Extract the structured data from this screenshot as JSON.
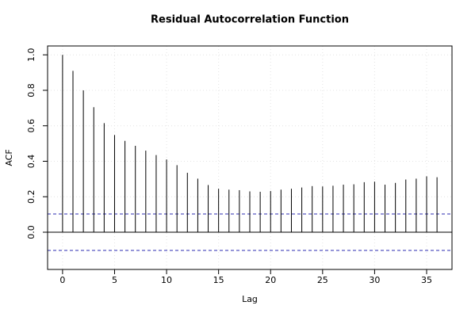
{
  "chart_data": {
    "type": "stem",
    "title": "Residual Autocorrelation Function",
    "x_label": "Lag",
    "y_label": "ACF",
    "x": [
      0,
      1,
      2,
      3,
      4,
      5,
      6,
      7,
      8,
      9,
      10,
      11,
      12,
      13,
      14,
      15,
      16,
      17,
      18,
      19,
      20,
      21,
      22,
      23,
      24,
      25,
      26,
      27,
      28,
      29,
      30,
      31,
      32,
      33,
      34,
      35,
      36
    ],
    "values": [
      1.0,
      0.91,
      0.8,
      0.705,
      0.615,
      0.548,
      0.515,
      0.487,
      0.46,
      0.435,
      0.41,
      0.378,
      0.335,
      0.302,
      0.266,
      0.245,
      0.24,
      0.237,
      0.23,
      0.228,
      0.232,
      0.24,
      0.245,
      0.252,
      0.26,
      0.258,
      0.262,
      0.268,
      0.27,
      0.282,
      0.285,
      0.268,
      0.278,
      0.297,
      0.302,
      0.315,
      0.31
    ],
    "color": "#000000",
    "ci": [
      0.103,
      -0.103
    ],
    "ci_color": "#2b2bb0",
    "xlim": [
      -1.44,
      37.44
    ],
    "xticks": [
      0,
      5,
      10,
      15,
      20,
      25,
      30,
      35
    ],
    "ylim": [
      -0.21,
      1.05
    ],
    "yticks": [
      {
        "value": 0,
        "label": "0.0"
      },
      0.2,
      0.4,
      0.6,
      0.8,
      {
        "value": 1,
        "label": "1.0"
      }
    ],
    "grid": true
  }
}
